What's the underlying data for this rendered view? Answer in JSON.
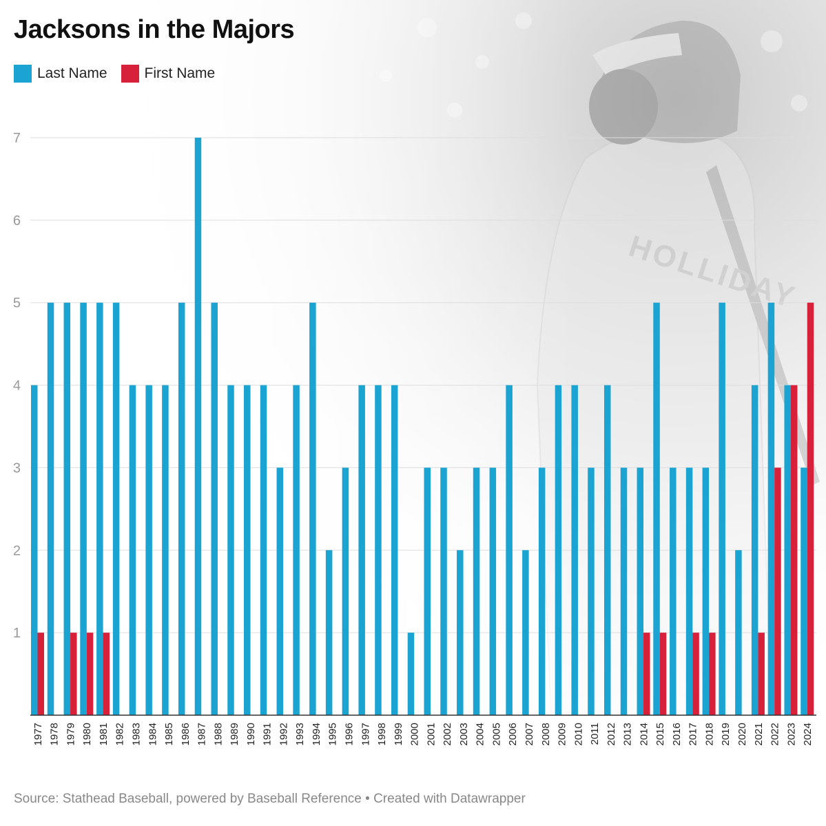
{
  "chart_data": {
    "type": "bar",
    "title": "Jacksons in the Majors",
    "source": "Source: Stathead Baseball, powered by Baseball Reference • Created with Datawrapper",
    "colors": {
      "last_name": "#1ba3d1",
      "first_name": "#d7213b",
      "grid": "#dddddd",
      "axis": "#333333"
    },
    "legend_position": "top-left",
    "grid": true,
    "ylim": [
      0,
      7
    ],
    "y_ticks": [
      1,
      2,
      3,
      4,
      5,
      6,
      7
    ],
    "categories": [
      "1977",
      "1978",
      "1979",
      "1980",
      "1981",
      "1982",
      "1983",
      "1984",
      "1985",
      "1986",
      "1987",
      "1988",
      "1989",
      "1990",
      "1991",
      "1992",
      "1993",
      "1994",
      "1995",
      "1996",
      "1997",
      "1998",
      "1999",
      "2000",
      "2001",
      "2002",
      "2003",
      "2004",
      "2005",
      "2006",
      "2007",
      "2008",
      "2009",
      "2010",
      "2011",
      "2012",
      "2013",
      "2014",
      "2015",
      "2016",
      "2017",
      "2018",
      "2019",
      "2020",
      "2021",
      "2022",
      "2023",
      "2024"
    ],
    "series": [
      {
        "name": "Last Name",
        "color": "#1ba3d1",
        "values": [
          4,
          5,
          5,
          5,
          5,
          5,
          4,
          4,
          4,
          5,
          7,
          5,
          4,
          4,
          4,
          3,
          4,
          5,
          2,
          3,
          4,
          4,
          4,
          1,
          3,
          3,
          2,
          3,
          3,
          4,
          2,
          3,
          4,
          4,
          3,
          4,
          3,
          3,
          5,
          3,
          3,
          3,
          5,
          2,
          4,
          5,
          4,
          3
        ]
      },
      {
        "name": "First Name",
        "color": "#d7213b",
        "values": [
          1,
          0,
          1,
          1,
          1,
          0,
          0,
          0,
          0,
          0,
          0,
          0,
          0,
          0,
          0,
          0,
          0,
          0,
          0,
          0,
          0,
          0,
          0,
          0,
          0,
          0,
          0,
          0,
          0,
          0,
          0,
          0,
          0,
          0,
          0,
          0,
          0,
          1,
          1,
          0,
          1,
          1,
          0,
          0,
          1,
          3,
          4,
          5
        ]
      }
    ]
  },
  "background_image": {
    "subject": "baseball-batter-photo",
    "jersey_text": "HOLLIDAY"
  }
}
